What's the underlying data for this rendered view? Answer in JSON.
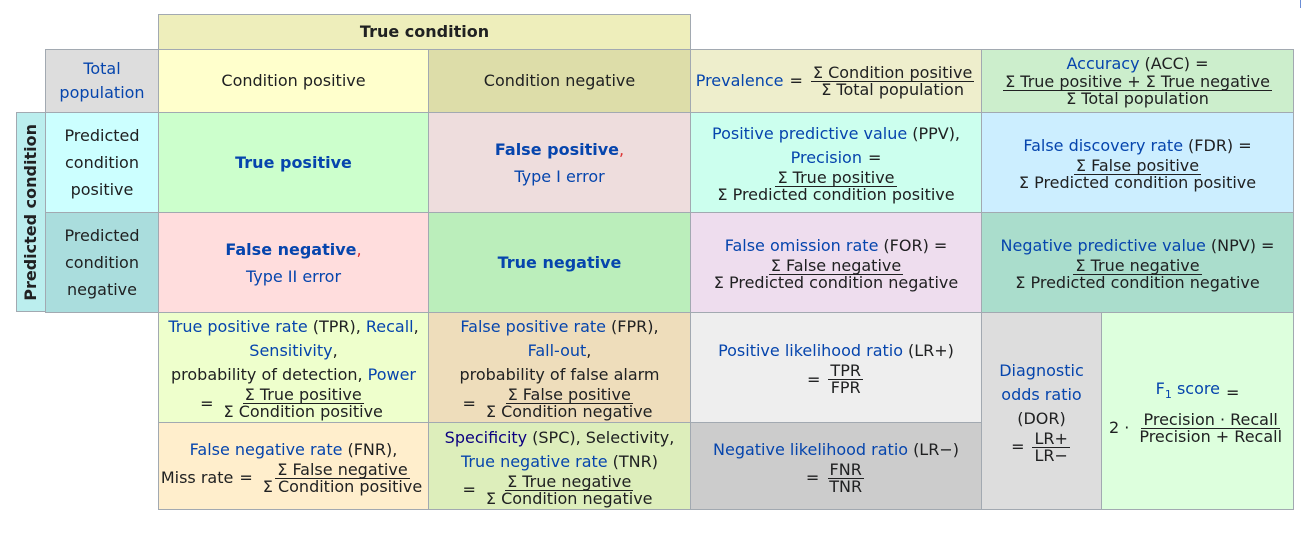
{
  "header": {
    "true_condition": "True condition",
    "total_population": "Total population",
    "condition_positive": "Condition positive",
    "condition_negative": "Condition negative",
    "predicted_condition": "Predicted condition",
    "predicted_condition_positive": "Predicted condition positive",
    "predicted_condition_negative": "Predicted condition negative"
  },
  "prevalence": {
    "name": "Prevalence",
    "eq": "=",
    "num": "Σ Condition positive",
    "den": "Σ Total population"
  },
  "accuracy": {
    "name": "Accuracy",
    "abbr": "(ACC) =",
    "num": "Σ True positive + Σ True negative",
    "den": "Σ Total population"
  },
  "tp": {
    "label": "True positive"
  },
  "fp": {
    "label": "False positive",
    "comma": ",",
    "sub": "Type I error"
  },
  "fn": {
    "label": "False negative",
    "comma": ",",
    "sub": "Type II error"
  },
  "tn": {
    "label": "True negative"
  },
  "ppv": {
    "name": "Positive predictive value",
    "abbr": "(PPV),",
    "alt": "Precision",
    "eq": "=",
    "num": "Σ True positive",
    "den": "Σ Predicted condition positive"
  },
  "fdr": {
    "name": "False discovery rate",
    "abbr": "(FDR) =",
    "num": "Σ False positive",
    "den": "Σ Predicted condition positive"
  },
  "for": {
    "name": "False omission rate",
    "abbr": "(FOR) =",
    "num": "Σ False negative",
    "den": "Σ Predicted condition negative"
  },
  "npv": {
    "name": "Negative predictive value",
    "abbr": "(NPV) =",
    "num": "Σ True negative",
    "den": "Σ Predicted condition negative"
  },
  "tpr": {
    "name": "True positive rate",
    "abbr": "(TPR),",
    "recall": "Recall",
    "comma1": ",",
    "sensitivity": "Sensitivity",
    "comma2": ",",
    "prob": "probability of detection,",
    "power": "Power",
    "eq": "=",
    "num": "Σ True positive",
    "den": "Σ Condition positive"
  },
  "fpr": {
    "name": "False positive rate",
    "abbr": "(FPR),",
    "fallout": "Fall-out",
    "comma": ",",
    "prob": "probability of false alarm",
    "eq": "=",
    "num": "Σ False positive",
    "den": "Σ Condition negative"
  },
  "lrp": {
    "name": "Positive likelihood ratio",
    "abbr": "(LR+)",
    "eq": "=",
    "num": "TPR",
    "den": "FPR"
  },
  "dor": {
    "line1": "Diagnostic",
    "line2": "odds ratio",
    "abbr": "(DOR)",
    "eq": "=",
    "num": "LR+",
    "den": "LR−"
  },
  "f1": {
    "name": "F",
    "sub": "1",
    "score": "score",
    "eq": "=",
    "prefix": "2 ·",
    "num": "Precision · Recall",
    "den": "Precision + Recall"
  },
  "fnr": {
    "name": "False negative rate",
    "abbr": "(FNR),",
    "miss": "Miss rate",
    "eq": "=",
    "num": "Σ False negative",
    "den": "Σ Condition positive"
  },
  "spc": {
    "name": "Specificity",
    "abbr": "(SPC), Selectivity,",
    "tnr": "True negative rate",
    "tnr_abbr": "(TNR)",
    "eq": "=",
    "num": "Σ True negative",
    "den": "Σ Condition negative"
  },
  "lrn": {
    "name": "Negative likelihood ratio",
    "abbr": "(LR−)",
    "eq": "=",
    "num": "FNR",
    "den": "TNR"
  }
}
